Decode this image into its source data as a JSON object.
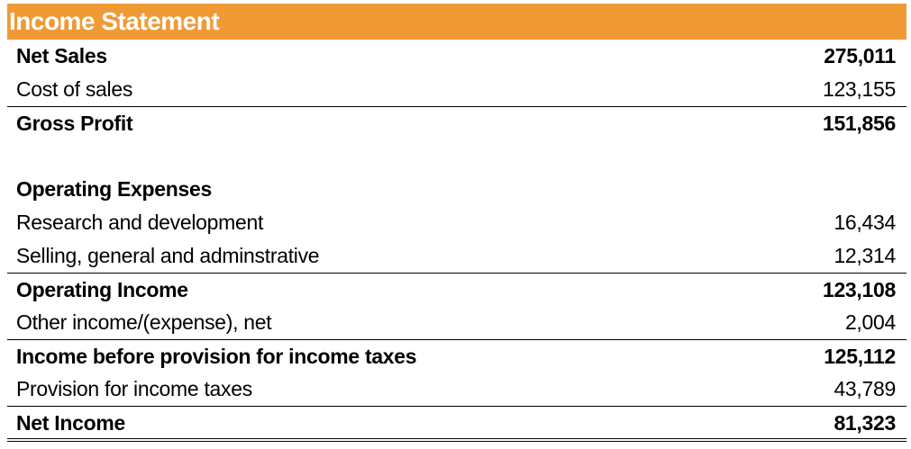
{
  "header": {
    "title": "Income Statement"
  },
  "rows": [
    {
      "label": "Net Sales",
      "value": "275,011"
    },
    {
      "label": "Cost of sales",
      "value": "123,155"
    },
    {
      "label": "Gross Profit",
      "value": "151,856"
    },
    {
      "label": "Operating Expenses",
      "value": ""
    },
    {
      "label": "Research and development",
      "value": "16,434"
    },
    {
      "label": "Selling, general and adminstrative",
      "value": "12,314"
    },
    {
      "label": "Operating Income",
      "value": "123,108"
    },
    {
      "label": "Other income/(expense), net",
      "value": "2,004"
    },
    {
      "label": "Income before provision for income taxes",
      "value": "125,112"
    },
    {
      "label": "Provision for income taxes",
      "value": "43,789"
    },
    {
      "label": "Net Income",
      "value": "81,323"
    }
  ]
}
